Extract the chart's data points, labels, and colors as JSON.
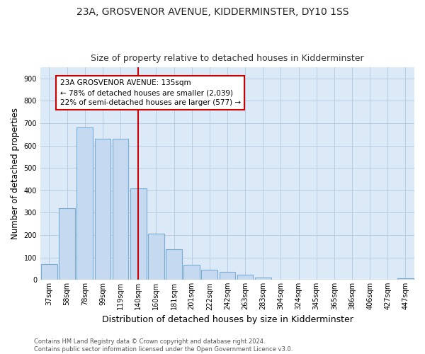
{
  "title": "23A, GROSVENOR AVENUE, KIDDERMINSTER, DY10 1SS",
  "subtitle": "Size of property relative to detached houses in Kidderminster",
  "xlabel": "Distribution of detached houses by size in Kidderminster",
  "ylabel": "Number of detached properties",
  "categories": [
    "37sqm",
    "58sqm",
    "78sqm",
    "99sqm",
    "119sqm",
    "140sqm",
    "160sqm",
    "181sqm",
    "201sqm",
    "222sqm",
    "242sqm",
    "263sqm",
    "283sqm",
    "304sqm",
    "324sqm",
    "345sqm",
    "365sqm",
    "386sqm",
    "406sqm",
    "427sqm",
    "447sqm"
  ],
  "values": [
    70,
    320,
    680,
    630,
    630,
    410,
    207,
    137,
    68,
    45,
    35,
    22,
    10,
    0,
    0,
    0,
    0,
    0,
    0,
    0,
    8
  ],
  "bar_color": "#c5d9f0",
  "bar_edge_color": "#7aadd4",
  "vline_x": 5.0,
  "vline_color": "#cc0000",
  "annotation_text": "23A GROSVENOR AVENUE: 135sqm\n← 78% of detached houses are smaller (2,039)\n22% of semi-detached houses are larger (577) →",
  "annotation_box_color": "#ffffff",
  "annotation_box_edge": "#cc0000",
  "ylim": [
    0,
    950
  ],
  "yticks": [
    0,
    100,
    200,
    300,
    400,
    500,
    600,
    700,
    800,
    900
  ],
  "footer": "Contains HM Land Registry data © Crown copyright and database right 2024.\nContains public sector information licensed under the Open Government Licence v3.0.",
  "fig_bg_color": "#ffffff",
  "plot_bg_color": "#dce9f7",
  "title_fontsize": 10,
  "subtitle_fontsize": 9,
  "tick_fontsize": 7,
  "ylabel_fontsize": 8.5,
  "xlabel_fontsize": 9,
  "footer_fontsize": 6,
  "annotation_fontsize": 7.5
}
